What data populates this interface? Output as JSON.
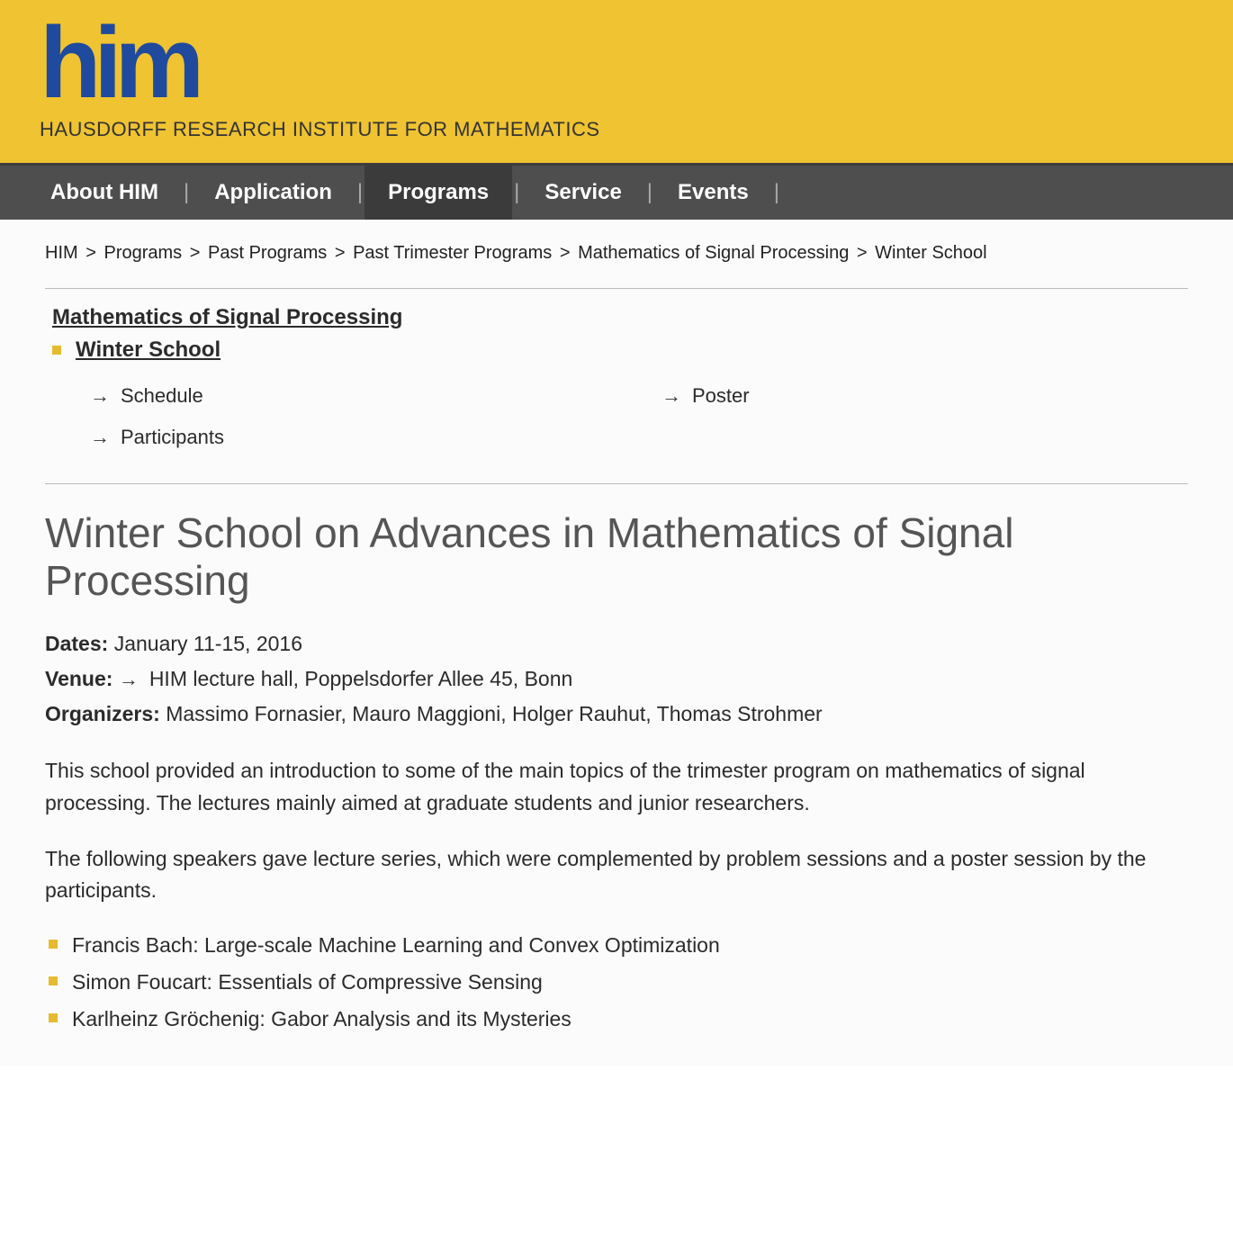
{
  "header": {
    "logo_text": "him",
    "subtitle": "HAUSDORFF RESEARCH INSTITUTE FOR MATHEMATICS"
  },
  "nav": {
    "items": [
      {
        "label": "About HIM",
        "active": false
      },
      {
        "label": "Application",
        "active": false
      },
      {
        "label": "Programs",
        "active": true
      },
      {
        "label": "Service",
        "active": false
      },
      {
        "label": "Events",
        "active": false
      }
    ]
  },
  "breadcrumb": {
    "items": [
      "HIM",
      "Programs",
      "Past Programs",
      "Past Trimester Programs",
      "Mathematics of Signal Processing",
      "Winter School"
    ]
  },
  "sidebar": {
    "section_title": "Mathematics of Signal Processing",
    "current": "Winter School",
    "sublinks": [
      {
        "label": "Schedule"
      },
      {
        "label": "Poster"
      },
      {
        "label": "Participants"
      }
    ]
  },
  "main": {
    "title": "Winter School on Advances in Mathematics of Signal Processing",
    "dates_label": "Dates:",
    "dates_value": "January 11-15, 2016",
    "venue_label": "Venue:",
    "venue_value": "HIM lecture hall, Poppelsdorfer Allee 45, Bonn",
    "organizers_label": "Organizers:",
    "organizers_value": "Massimo Fornasier, Mauro Maggioni, Holger Rauhut, Thomas Strohmer",
    "para1": "This school provided an introduction to some of the main topics of the trimester program on mathematics of signal processing. The lectures mainly aimed at graduate students and junior researchers.",
    "para2": "The following speakers gave lecture series, which were complemented by problem sessions and a poster session by the participants.",
    "speakers": [
      "Francis Bach: Large-scale Machine Learning and Convex Optimization",
      "Simon Foucart: Essentials of Compressive Sensing",
      "Karlheinz Gröchenig: Gabor Analysis and its Mysteries"
    ]
  },
  "colors": {
    "header_bg": "#efc331",
    "logo_blue": "#1f4a9e",
    "nav_bg": "#4e4e4e",
    "nav_active_bg": "#3b3b3b",
    "bullet": "#e5bb2f",
    "title_gray": "#555555"
  }
}
